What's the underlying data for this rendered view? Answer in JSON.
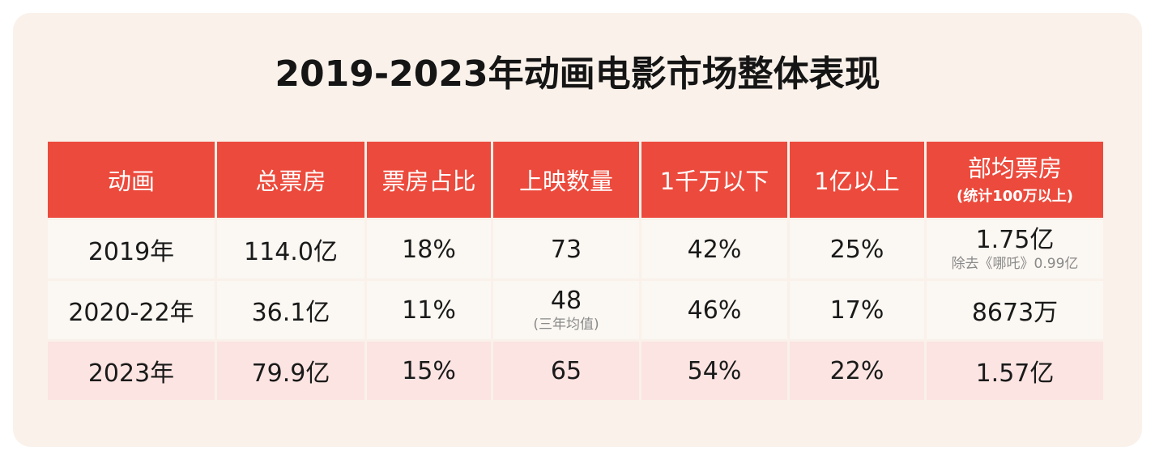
{
  "title": "2019-2023年动画电影市场整体表现",
  "table": {
    "headers": [
      {
        "label": "动画"
      },
      {
        "label": "总票房"
      },
      {
        "label": "票房占比"
      },
      {
        "label": "上映数量"
      },
      {
        "label": "1千万以下"
      },
      {
        "label": "1亿以上"
      },
      {
        "label": "部均票房",
        "sub": "(统计100万以上)"
      }
    ],
    "rows": [
      {
        "year": "2019年",
        "total_box_office": "114.0亿",
        "share": "18%",
        "releases": "73",
        "under_10m": "42%",
        "over_100m": "25%",
        "avg_box_office": "1.75亿",
        "avg_note": "除去《哪吒》0.99亿"
      },
      {
        "year": "2020-22年",
        "total_box_office": "36.1亿",
        "share": "11%",
        "releases": "48",
        "releases_note": "(三年均值)",
        "under_10m": "46%",
        "over_100m": "17%",
        "avg_box_office": "8673万"
      },
      {
        "year": "2023年",
        "total_box_office": "79.9亿",
        "share": "15%",
        "releases": "65",
        "under_10m": "54%",
        "over_100m": "22%",
        "avg_box_office": "1.57亿"
      }
    ]
  },
  "colors": {
    "header_bg": "#ec4a3c",
    "card_bg": "#f9f1ea",
    "highlight_row_bg": "#fbe4e2"
  }
}
